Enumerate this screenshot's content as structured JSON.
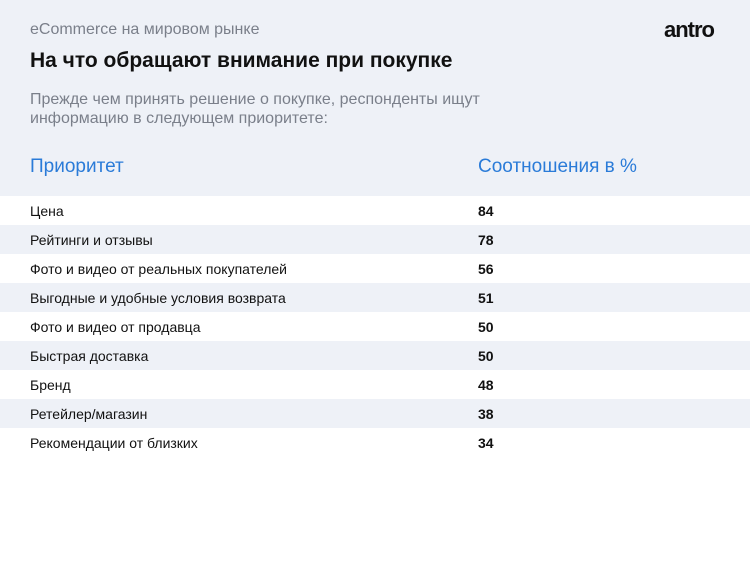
{
  "header": {
    "kicker": "eCommerce на мировом рынке",
    "title": "На что обращают внимание при покупке",
    "subtitle": "Прежде чем принять решение о покупке, респонденты ищут информацию в следующем приоритете:",
    "logo": "antro"
  },
  "table": {
    "columns": [
      "Приоритет",
      "Соотношения в %"
    ],
    "rows": [
      [
        "Цена",
        84
      ],
      [
        "Рейтинги и отзывы",
        78
      ],
      [
        "Фото и видео от реальных покупателей",
        56
      ],
      [
        "Выгодные и удобные условия возврата",
        51
      ],
      [
        "Фото и видео от продавца",
        50
      ],
      [
        "Быстрая доставка",
        50
      ],
      [
        "Бренд",
        48
      ],
      [
        "Ретейлер/магазин",
        38
      ],
      [
        "Рекомендации от близких",
        34
      ]
    ]
  }
}
